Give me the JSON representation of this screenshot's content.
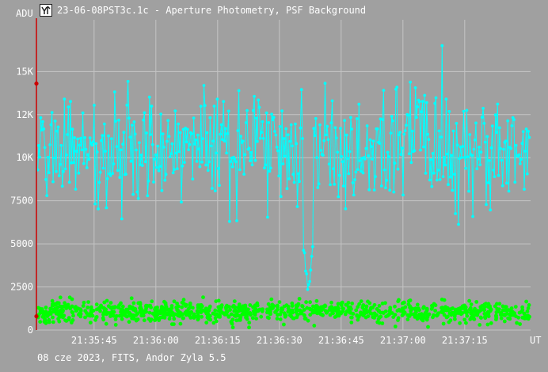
{
  "window": {
    "title": "23-06-08PST3c.1c - Aperture Photometry, PSF Background",
    "footer": "08 cze 2023, FITS, Andor Zyla 5.5",
    "icon": "photometry-app-icon"
  },
  "colors": {
    "background": "#a0a0a0",
    "grid": "#c4c4c4",
    "text": "#ffffff",
    "y_axis": "#cc0000",
    "marker": "#cc0000"
  },
  "chart_data": {
    "type": "scatter",
    "title": "23-06-08PST3c.1c - Aperture Photometry, PSF Background",
    "ylabel": "ADU",
    "xlabel": "UT",
    "ylim": [
      0,
      18000
    ],
    "y_ticks": [
      {
        "value": 0,
        "label": "0"
      },
      {
        "value": 2500,
        "label": "2500"
      },
      {
        "value": 5000,
        "label": "5000"
      },
      {
        "value": 7500,
        "label": "7500"
      },
      {
        "value": 10000,
        "label": "10K"
      },
      {
        "value": 12500,
        "label": "12K"
      },
      {
        "value": 15000,
        "label": "15K"
      }
    ],
    "xlim": [
      "21:35:31",
      "21:37:31"
    ],
    "x_ticks": [
      "21:35:45",
      "21:36:00",
      "21:36:15",
      "21:36:30",
      "21:36:45",
      "21:37:00",
      "21:37:15"
    ],
    "grid": true,
    "cursor_values": [
      14300,
      800
    ],
    "series": [
      {
        "color": "#00ffff",
        "style": "line+markers",
        "mean": 10500,
        "spread": 1600,
        "dip": {
          "time": "21:36:37",
          "min": 1800
        }
      },
      {
        "color": "#00ff00",
        "style": "markers",
        "mean": 1050,
        "spread": 300
      }
    ]
  }
}
